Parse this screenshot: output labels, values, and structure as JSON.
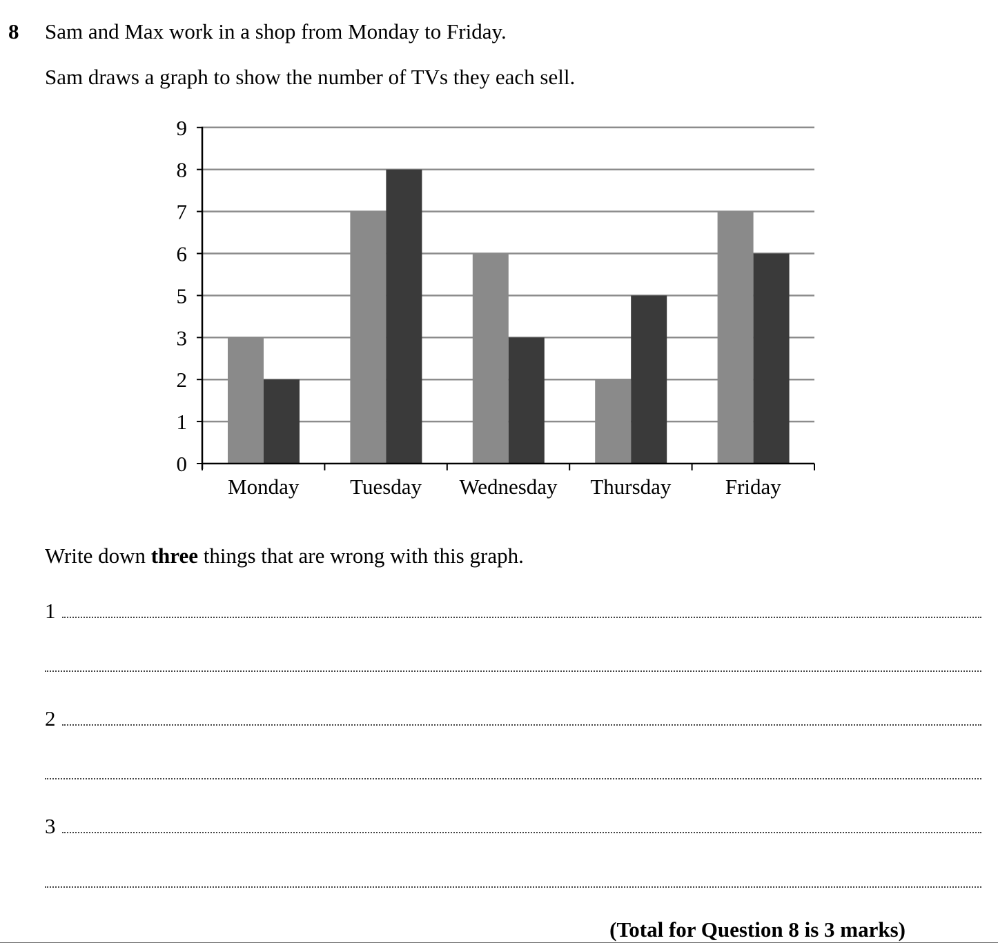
{
  "question": {
    "number": "8",
    "intro_line_1": "Sam and Max work in a shop from Monday to Friday.",
    "intro_line_2": "Sam draws a graph to show the number of TVs they each sell.",
    "instruction_pre": "Write down ",
    "instruction_bold": "three",
    "instruction_post": " things that are wrong with this graph.",
    "answers": [
      {
        "label": "1"
      },
      {
        "label": "2"
      },
      {
        "label": "3"
      }
    ],
    "total": "(Total for Question 8 is 3 marks)"
  },
  "chart_data": {
    "type": "bar",
    "categories": [
      "Monday",
      "Tuesday",
      "Wednesday",
      "Thursday",
      "Friday"
    ],
    "y_tick_labels": [
      "0",
      "1",
      "2",
      "3",
      "5",
      "6",
      "7",
      "8",
      "9"
    ],
    "series": [
      {
        "values": [
          3,
          7,
          6,
          2,
          7
        ],
        "color": "#8a8a8a"
      },
      {
        "values": [
          2,
          8,
          3,
          5,
          6
        ],
        "color": "#3a3a3a"
      }
    ],
    "note": "y-axis tick 4 is missing; labelled values read as printed tick labels",
    "grid": true,
    "legend": "none",
    "title": "",
    "xlabel": "",
    "ylabel": ""
  }
}
